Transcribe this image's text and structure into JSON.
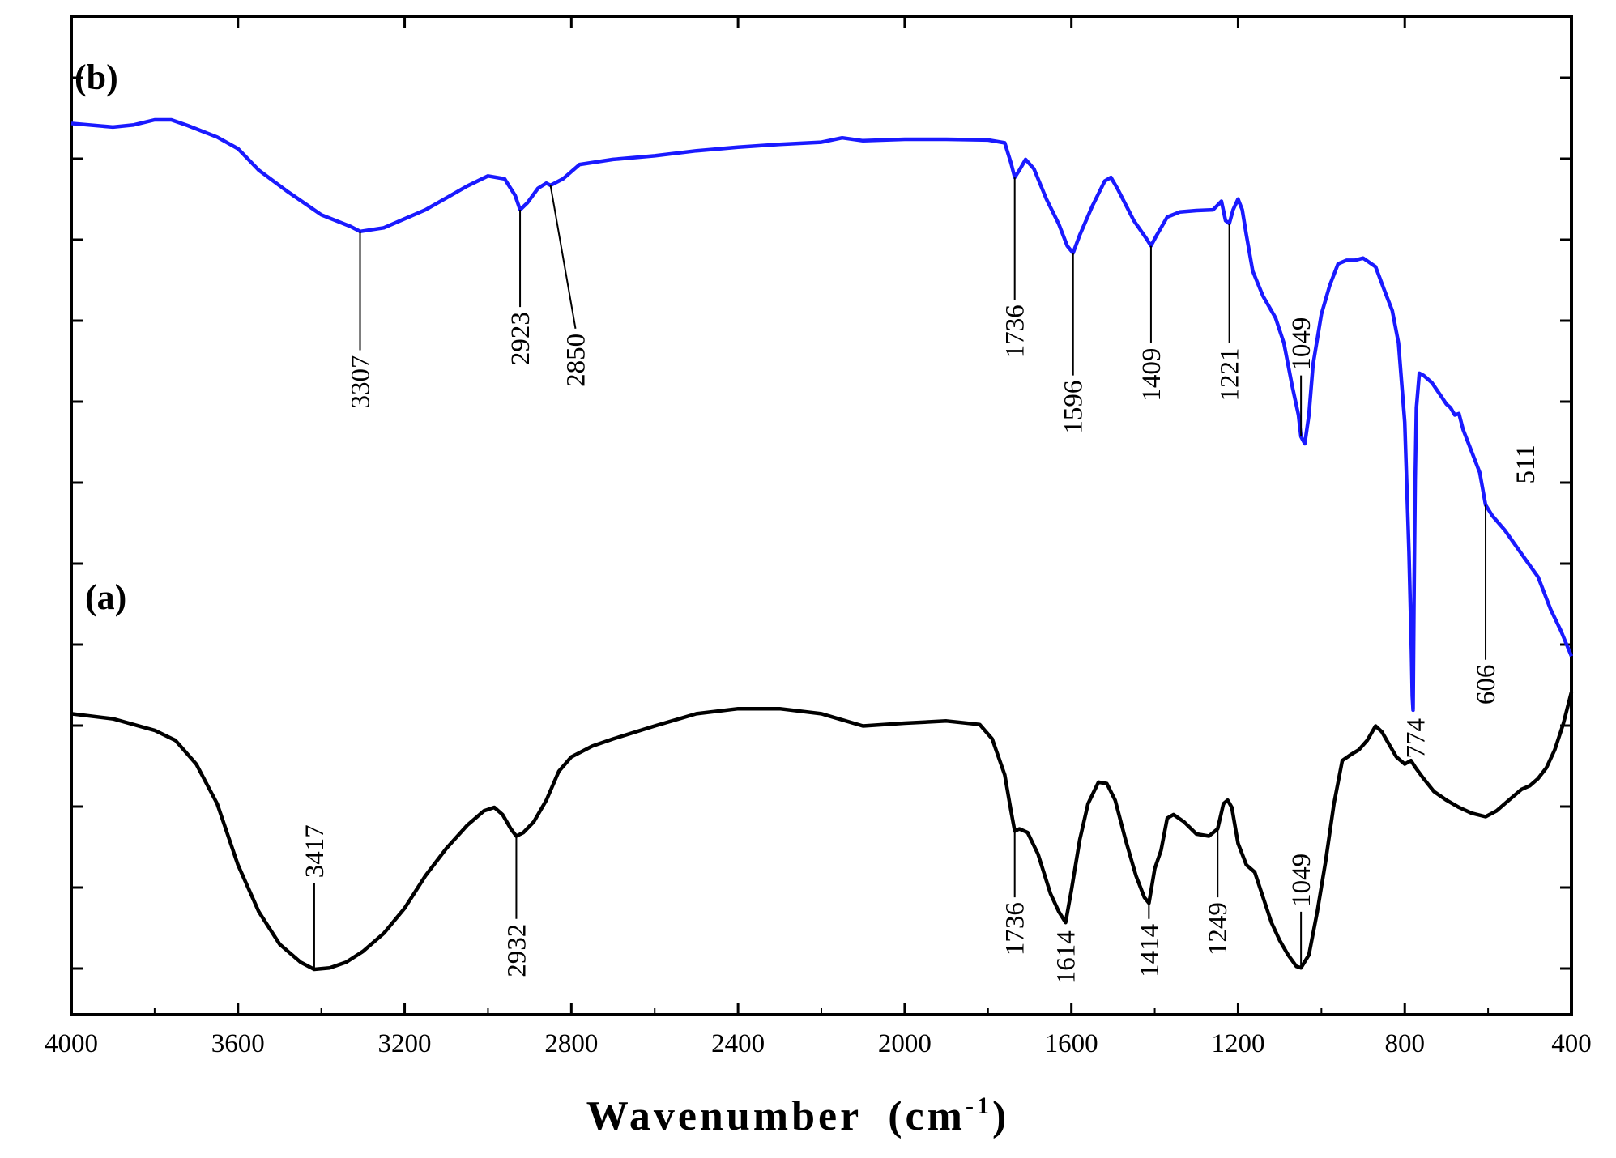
{
  "chart_data": {
    "type": "line",
    "title": "",
    "xlabel": "Wavenumber",
    "xlabel_unit_base": "(cm",
    "xlabel_unit_sup": "-1",
    "xlabel_unit_close": ")",
    "ylabel": "",
    "xlim": [
      4000,
      400
    ],
    "x_reversed": true,
    "x_ticks": [
      4000,
      3600,
      3200,
      2800,
      2400,
      2000,
      1600,
      1200,
      800,
      400
    ],
    "y_ticks_unlabeled": true,
    "grid": false,
    "series": [
      {
        "name": "(b)",
        "color": "#1a1aff",
        "points": [
          [
            4000,
            0.895
          ],
          [
            3900,
            0.89
          ],
          [
            3850,
            0.893
          ],
          [
            3800,
            0.9
          ],
          [
            3760,
            0.9
          ],
          [
            3720,
            0.892
          ],
          [
            3650,
            0.876
          ],
          [
            3600,
            0.86
          ],
          [
            3550,
            0.83
          ],
          [
            3480,
            0.8
          ],
          [
            3400,
            0.768
          ],
          [
            3330,
            0.752
          ],
          [
            3307,
            0.745
          ],
          [
            3250,
            0.75
          ],
          [
            3150,
            0.775
          ],
          [
            3050,
            0.808
          ],
          [
            3000,
            0.822
          ],
          [
            2960,
            0.818
          ],
          [
            2935,
            0.795
          ],
          [
            2923,
            0.775
          ],
          [
            2905,
            0.785
          ],
          [
            2880,
            0.805
          ],
          [
            2860,
            0.812
          ],
          [
            2850,
            0.809
          ],
          [
            2820,
            0.818
          ],
          [
            2780,
            0.838
          ],
          [
            2700,
            0.845
          ],
          [
            2600,
            0.85
          ],
          [
            2500,
            0.857
          ],
          [
            2400,
            0.862
          ],
          [
            2300,
            0.866
          ],
          [
            2200,
            0.869
          ],
          [
            2150,
            0.875
          ],
          [
            2100,
            0.871
          ],
          [
            2000,
            0.873
          ],
          [
            1900,
            0.873
          ],
          [
            1800,
            0.872
          ],
          [
            1760,
            0.868
          ],
          [
            1745,
            0.84
          ],
          [
            1736,
            0.82
          ],
          [
            1725,
            0.83
          ],
          [
            1710,
            0.845
          ],
          [
            1690,
            0.832
          ],
          [
            1660,
            0.79
          ],
          [
            1630,
            0.755
          ],
          [
            1610,
            0.725
          ],
          [
            1596,
            0.715
          ],
          [
            1580,
            0.74
          ],
          [
            1550,
            0.78
          ],
          [
            1520,
            0.815
          ],
          [
            1505,
            0.82
          ],
          [
            1490,
            0.805
          ],
          [
            1450,
            0.76
          ],
          [
            1420,
            0.735
          ],
          [
            1409,
            0.725
          ],
          [
            1395,
            0.74
          ],
          [
            1370,
            0.765
          ],
          [
            1340,
            0.772
          ],
          [
            1300,
            0.774
          ],
          [
            1260,
            0.775
          ],
          [
            1240,
            0.787
          ],
          [
            1230,
            0.76
          ],
          [
            1221,
            0.756
          ],
          [
            1212,
            0.775
          ],
          [
            1200,
            0.79
          ],
          [
            1190,
            0.775
          ],
          [
            1180,
            0.74
          ],
          [
            1165,
            0.69
          ],
          [
            1140,
            0.655
          ],
          [
            1110,
            0.625
          ],
          [
            1090,
            0.59
          ],
          [
            1070,
            0.53
          ],
          [
            1055,
            0.49
          ],
          [
            1049,
            0.46
          ],
          [
            1040,
            0.45
          ],
          [
            1030,
            0.49
          ],
          [
            1020,
            0.56
          ],
          [
            1000,
            0.63
          ],
          [
            980,
            0.67
          ],
          [
            960,
            0.7
          ],
          [
            940,
            0.705
          ],
          [
            920,
            0.705
          ],
          [
            900,
            0.708
          ],
          [
            870,
            0.696
          ],
          [
            850,
            0.665
          ],
          [
            830,
            0.635
          ],
          [
            815,
            0.59
          ],
          [
            800,
            0.48
          ],
          [
            790,
            0.3
          ],
          [
            784,
            0.16
          ],
          [
            782,
            0.1
          ],
          [
            780,
            0.08
          ],
          [
            778,
            0.22
          ],
          [
            775,
            0.4
          ],
          [
            772,
            0.5
          ],
          [
            765,
            0.548
          ],
          [
            755,
            0.545
          ],
          [
            735,
            0.535
          ],
          [
            715,
            0.518
          ],
          [
            700,
            0.505
          ],
          [
            690,
            0.5
          ],
          [
            680,
            0.49
          ],
          [
            670,
            0.492
          ],
          [
            660,
            0.47
          ],
          [
            640,
            0.44
          ],
          [
            620,
            0.41
          ],
          [
            606,
            0.365
          ],
          [
            590,
            0.35
          ],
          [
            560,
            0.33
          ],
          [
            511,
            0.29
          ],
          [
            480,
            0.265
          ],
          [
            450,
            0.22
          ],
          [
            425,
            0.19
          ],
          [
            400,
            0.155
          ]
        ],
        "peaks": [
          3307,
          2923,
          2850,
          1736,
          1596,
          1409,
          1221,
          1049,
          774,
          606,
          511
        ]
      },
      {
        "name": "(a)",
        "color": "#000000",
        "points": [
          [
            4000,
            0.075
          ],
          [
            3900,
            0.068
          ],
          [
            3800,
            0.052
          ],
          [
            3750,
            0.038
          ],
          [
            3700,
            0.005
          ],
          [
            3650,
            -0.05
          ],
          [
            3600,
            -0.135
          ],
          [
            3550,
            -0.2
          ],
          [
            3500,
            -0.245
          ],
          [
            3450,
            -0.27
          ],
          [
            3417,
            -0.28
          ],
          [
            3380,
            -0.278
          ],
          [
            3340,
            -0.27
          ],
          [
            3300,
            -0.255
          ],
          [
            3250,
            -0.23
          ],
          [
            3200,
            -0.195
          ],
          [
            3150,
            -0.15
          ],
          [
            3100,
            -0.112
          ],
          [
            3050,
            -0.08
          ],
          [
            3010,
            -0.06
          ],
          [
            2985,
            -0.055
          ],
          [
            2965,
            -0.065
          ],
          [
            2945,
            -0.085
          ],
          [
            2932,
            -0.095
          ],
          [
            2915,
            -0.09
          ],
          [
            2890,
            -0.075
          ],
          [
            2860,
            -0.045
          ],
          [
            2830,
            -0.005
          ],
          [
            2800,
            0.015
          ],
          [
            2750,
            0.03
          ],
          [
            2700,
            0.04
          ],
          [
            2600,
            0.058
          ],
          [
            2500,
            0.075
          ],
          [
            2400,
            0.082
          ],
          [
            2300,
            0.082
          ],
          [
            2200,
            0.075
          ],
          [
            2100,
            0.058
          ],
          [
            2000,
            0.062
          ],
          [
            1900,
            0.065
          ],
          [
            1820,
            0.06
          ],
          [
            1790,
            0.04
          ],
          [
            1760,
            -0.01
          ],
          [
            1745,
            -0.06
          ],
          [
            1736,
            -0.088
          ],
          [
            1725,
            -0.085
          ],
          [
            1705,
            -0.09
          ],
          [
            1680,
            -0.12
          ],
          [
            1650,
            -0.175
          ],
          [
            1630,
            -0.2
          ],
          [
            1614,
            -0.215
          ],
          [
            1600,
            -0.17
          ],
          [
            1580,
            -0.1
          ],
          [
            1560,
            -0.05
          ],
          [
            1535,
            -0.02
          ],
          [
            1515,
            -0.022
          ],
          [
            1495,
            -0.045
          ],
          [
            1470,
            -0.1
          ],
          [
            1445,
            -0.15
          ],
          [
            1425,
            -0.18
          ],
          [
            1414,
            -0.188
          ],
          [
            1400,
            -0.14
          ],
          [
            1385,
            -0.115
          ],
          [
            1370,
            -0.07
          ],
          [
            1355,
            -0.065
          ],
          [
            1330,
            -0.075
          ],
          [
            1300,
            -0.092
          ],
          [
            1270,
            -0.095
          ],
          [
            1249,
            -0.085
          ],
          [
            1235,
            -0.05
          ],
          [
            1225,
            -0.045
          ],
          [
            1215,
            -0.055
          ],
          [
            1200,
            -0.105
          ],
          [
            1180,
            -0.135
          ],
          [
            1160,
            -0.145
          ],
          [
            1140,
            -0.18
          ],
          [
            1120,
            -0.215
          ],
          [
            1100,
            -0.24
          ],
          [
            1080,
            -0.26
          ],
          [
            1060,
            -0.276
          ],
          [
            1049,
            -0.278
          ],
          [
            1030,
            -0.26
          ],
          [
            1010,
            -0.2
          ],
          [
            990,
            -0.13
          ],
          [
            970,
            -0.05
          ],
          [
            950,
            0.01
          ],
          [
            930,
            0.018
          ],
          [
            910,
            0.025
          ],
          [
            890,
            0.038
          ],
          [
            870,
            0.058
          ],
          [
            855,
            0.05
          ],
          [
            840,
            0.035
          ],
          [
            820,
            0.015
          ],
          [
            800,
            0.005
          ],
          [
            785,
            0.01
          ],
          [
            774,
            0.0
          ],
          [
            755,
            -0.015
          ],
          [
            730,
            -0.033
          ],
          [
            700,
            -0.045
          ],
          [
            670,
            -0.055
          ],
          [
            640,
            -0.063
          ],
          [
            606,
            -0.068
          ],
          [
            580,
            -0.06
          ],
          [
            550,
            -0.045
          ],
          [
            520,
            -0.03
          ],
          [
            500,
            -0.025
          ],
          [
            480,
            -0.015
          ],
          [
            460,
            0.0
          ],
          [
            440,
            0.025
          ],
          [
            420,
            0.06
          ],
          [
            400,
            0.105
          ]
        ],
        "peaks": [
          3417,
          2932,
          1736,
          1614,
          1414,
          1249,
          1049
        ]
      }
    ],
    "annotations": [
      {
        "series": "(b)",
        "label": "3307",
        "x": 3307,
        "top": 0.745,
        "bottom": 0.58
      },
      {
        "series": "(b)",
        "label": "2923",
        "x": 2923,
        "top": 0.775,
        "bottom": 0.64
      },
      {
        "series": "(b)",
        "label": "2850",
        "x": 2850,
        "top": 0.809,
        "bottom": 0.61,
        "slant_to_x": 2790
      },
      {
        "series": "(b)",
        "label": "1736",
        "x": 1736,
        "top": 0.82,
        "bottom": 0.65
      },
      {
        "series": "(b)",
        "label": "1596",
        "x": 1596,
        "top": 0.715,
        "bottom": 0.545
      },
      {
        "series": "(b)",
        "label": "1409",
        "x": 1409,
        "top": 0.725,
        "bottom": 0.59
      },
      {
        "series": "(b)",
        "label": "1221",
        "x": 1221,
        "top": 0.756,
        "bottom": 0.59
      },
      {
        "series": "(b)",
        "label": "1049",
        "x": 1049,
        "top": 0.46,
        "bottom": 0.545,
        "label_above": true
      },
      {
        "series": "(b)",
        "label": "774",
        "x": 774,
        "top": 0.08,
        "bottom": 0.08,
        "label_only": true
      },
      {
        "series": "(b)",
        "label": "606",
        "x": 606,
        "top": 0.365,
        "bottom": 0.15
      },
      {
        "series": "(b)",
        "label": "511",
        "x": 511,
        "top": 0.46,
        "bottom": 0.46,
        "label_only": true
      },
      {
        "series": "(a)",
        "label": "3417",
        "x": 3417,
        "top": -0.28,
        "bottom": -0.16,
        "label_above": true
      },
      {
        "series": "(a)",
        "label": "2932",
        "x": 2932,
        "top": -0.095,
        "bottom": -0.21
      },
      {
        "series": "(a)",
        "label": "1736",
        "x": 1736,
        "top": -0.088,
        "bottom": -0.18
      },
      {
        "series": "(a)",
        "label": "1614",
        "x": 1614,
        "top": -0.215,
        "bottom": -0.215,
        "label_only": true
      },
      {
        "series": "(a)",
        "label": "1414",
        "x": 1414,
        "top": -0.188,
        "bottom": -0.21
      },
      {
        "series": "(a)",
        "label": "1249",
        "x": 1249,
        "top": -0.085,
        "bottom": -0.18
      },
      {
        "series": "(a)",
        "label": "1049",
        "x": 1049,
        "top": -0.278,
        "bottom": -0.2,
        "label_above": true
      }
    ],
    "panel_labels": [
      {
        "label": "(b)",
        "series": "(b)"
      },
      {
        "label": "(a)",
        "series": "(a)"
      }
    ]
  }
}
